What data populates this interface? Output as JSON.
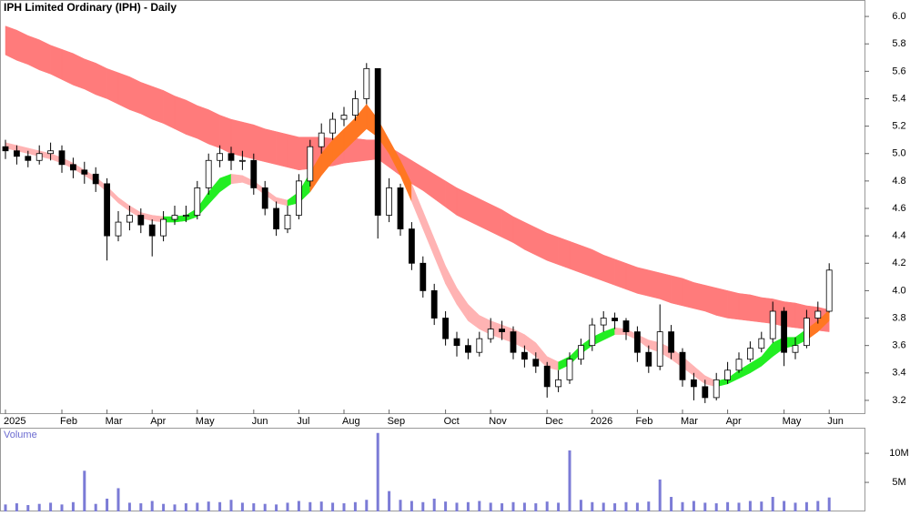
{
  "chart_data": {
    "type": "candlestick",
    "title": "IPH Limited Ordinary (IPH) - Daily",
    "categories": [
      "2025",
      null,
      null,
      null,
      null,
      "Feb",
      null,
      null,
      null,
      "Mar",
      null,
      null,
      null,
      "Apr",
      null,
      null,
      null,
      "May",
      null,
      null,
      null,
      null,
      "Jun",
      null,
      null,
      null,
      "Jul",
      null,
      null,
      null,
      "Aug",
      null,
      null,
      null,
      "Sep",
      null,
      null,
      null,
      null,
      "Oct",
      null,
      null,
      null,
      "Nov",
      null,
      null,
      null,
      null,
      "Dec",
      null,
      null,
      null,
      "2026",
      null,
      null,
      null,
      "Feb",
      null,
      null,
      null,
      "Mar",
      null,
      null,
      null,
      "Apr",
      null,
      null,
      null,
      null,
      "May",
      null,
      null,
      null,
      "Jun"
    ],
    "open": [
      5.05,
      5.02,
      4.98,
      4.95,
      5.0,
      5.02,
      4.92,
      4.88,
      4.85,
      4.78,
      4.4,
      4.5,
      4.55,
      4.48,
      4.4,
      4.52,
      4.55,
      4.55,
      4.75,
      4.95,
      5.0,
      4.95,
      4.95,
      4.75,
      4.6,
      4.45,
      4.55,
      4.8,
      5.05,
      5.15,
      5.25,
      5.28,
      5.4,
      5.62,
      4.55,
      4.75,
      4.45,
      4.2,
      4.0,
      3.8,
      3.65,
      3.6,
      3.55,
      3.65,
      3.72,
      3.7,
      3.55,
      3.5,
      3.45,
      3.3,
      3.35,
      3.5,
      3.6,
      3.75,
      3.8,
      3.78,
      3.7,
      3.55,
      3.45,
      3.7,
      3.55,
      3.35,
      3.3,
      3.22,
      3.35,
      3.42,
      3.5,
      3.58,
      3.65,
      3.85,
      3.55,
      3.6,
      3.8,
      3.85
    ],
    "high": [
      5.1,
      5.06,
      5.02,
      5.06,
      5.08,
      5.06,
      4.97,
      4.94,
      4.9,
      4.82,
      4.58,
      4.62,
      4.6,
      4.52,
      4.58,
      4.62,
      4.62,
      4.8,
      5.0,
      5.06,
      5.05,
      5.02,
      5.0,
      4.8,
      4.65,
      4.62,
      4.85,
      5.1,
      5.22,
      5.3,
      5.34,
      5.46,
      5.66,
      5.62,
      4.82,
      4.78,
      4.5,
      4.25,
      4.05,
      3.85,
      3.7,
      3.65,
      3.7,
      3.8,
      3.78,
      3.74,
      3.6,
      3.55,
      3.48,
      3.42,
      3.55,
      3.65,
      3.8,
      3.85,
      3.84,
      3.8,
      3.74,
      3.6,
      3.9,
      3.75,
      3.58,
      3.4,
      3.35,
      3.4,
      3.48,
      3.55,
      3.63,
      3.7,
      3.92,
      3.88,
      3.66,
      3.86,
      3.92,
      4.2
    ],
    "low": [
      4.96,
      4.92,
      4.9,
      4.92,
      4.95,
      4.86,
      4.82,
      4.78,
      4.72,
      4.22,
      4.36,
      4.44,
      4.42,
      4.25,
      4.36,
      4.48,
      4.5,
      4.52,
      4.7,
      4.9,
      4.88,
      4.88,
      4.7,
      4.55,
      4.4,
      4.42,
      4.52,
      4.76,
      5.0,
      5.1,
      5.2,
      5.24,
      5.36,
      4.38,
      4.5,
      4.4,
      4.15,
      3.95,
      3.75,
      3.6,
      3.52,
      3.5,
      3.52,
      3.62,
      3.64,
      3.5,
      3.44,
      3.4,
      3.22,
      3.26,
      3.32,
      3.46,
      3.56,
      3.7,
      3.72,
      3.64,
      3.48,
      3.4,
      3.42,
      3.5,
      3.3,
      3.2,
      3.18,
      3.2,
      3.32,
      3.4,
      3.48,
      3.55,
      3.62,
      3.45,
      3.5,
      3.58,
      3.76,
      3.84
    ],
    "close": [
      5.02,
      4.98,
      4.95,
      5.0,
      5.02,
      4.92,
      4.88,
      4.85,
      4.78,
      4.4,
      4.5,
      4.55,
      4.48,
      4.4,
      4.52,
      4.55,
      4.55,
      4.75,
      4.95,
      5.0,
      4.95,
      4.95,
      4.75,
      4.6,
      4.45,
      4.55,
      4.8,
      5.05,
      5.15,
      5.25,
      5.28,
      5.4,
      5.62,
      4.55,
      4.75,
      4.45,
      4.2,
      4.0,
      3.8,
      3.65,
      3.6,
      3.55,
      3.65,
      3.72,
      3.7,
      3.55,
      3.5,
      3.45,
      3.3,
      3.35,
      3.5,
      3.6,
      3.75,
      3.8,
      3.78,
      3.7,
      3.55,
      3.45,
      3.7,
      3.55,
      3.35,
      3.3,
      3.22,
      3.35,
      3.42,
      3.5,
      3.58,
      3.65,
      3.85,
      3.55,
      3.6,
      3.8,
      3.85,
      4.15
    ],
    "up_color": "#ffffff",
    "down_color": "#000000",
    "ylim": [
      3.1,
      6.12
    ],
    "yticks": [
      3.2,
      3.4,
      3.6,
      3.8,
      {
        "value": 4,
        "label": "4.0"
      },
      4.2,
      4.4,
      4.6,
      4.8,
      {
        "value": 5,
        "label": "5.0"
      },
      5.2,
      5.4,
      5.6,
      5.8,
      {
        "value": 6,
        "label": "6.0"
      }
    ],
    "long_band": {
      "color": "#ff7b7b",
      "upper": [
        5.93,
        5.9,
        5.86,
        5.83,
        5.79,
        5.76,
        5.73,
        5.69,
        5.66,
        5.62,
        5.59,
        5.56,
        5.52,
        5.49,
        5.46,
        5.42,
        5.39,
        5.35,
        5.32,
        5.28,
        5.25,
        5.23,
        5.21,
        5.18,
        5.16,
        5.14,
        5.12,
        5.12,
        5.12,
        5.11,
        5.11,
        5.11,
        5.1,
        5.1,
        5.05,
        5.0,
        4.95,
        4.9,
        4.85,
        4.8,
        4.75,
        4.71,
        4.67,
        4.63,
        4.59,
        4.54,
        4.5,
        4.46,
        4.42,
        4.39,
        4.36,
        4.33,
        4.3,
        4.26,
        4.23,
        4.2,
        4.17,
        4.15,
        4.13,
        4.11,
        4.09,
        4.06,
        4.04,
        4.02,
        4.0,
        3.98,
        3.97,
        3.95,
        3.94,
        3.92,
        3.91,
        3.89,
        3.88,
        3.86
      ],
      "lower": [
        5.72,
        5.68,
        5.65,
        5.61,
        5.58,
        5.54,
        5.5,
        5.47,
        5.43,
        5.4,
        5.36,
        5.32,
        5.29,
        5.25,
        5.22,
        5.18,
        5.14,
        5.11,
        5.07,
        5.04,
        5.0,
        4.98,
        4.96,
        4.94,
        4.92,
        4.9,
        4.88,
        4.89,
        4.9,
        4.91,
        4.93,
        4.94,
        4.95,
        4.96,
        4.9,
        4.84,
        4.78,
        4.73,
        4.67,
        4.61,
        4.55,
        4.51,
        4.47,
        4.43,
        4.39,
        4.35,
        4.3,
        4.26,
        4.22,
        4.19,
        4.16,
        4.13,
        4.1,
        4.07,
        4.04,
        4.01,
        3.98,
        3.96,
        3.94,
        3.91,
        3.89,
        3.87,
        3.85,
        3.82,
        3.8,
        3.79,
        3.78,
        3.77,
        3.76,
        3.74,
        3.73,
        3.72,
        3.71,
        3.7
      ]
    },
    "short_band": {
      "rising_color": "#22ee22",
      "falling_color": "#ffb3b3",
      "overlap_color": "#ff7722",
      "upper": [
        5.08,
        5.06,
        5.04,
        5.02,
        5.0,
        4.97,
        4.93,
        4.88,
        4.83,
        4.76,
        4.68,
        4.62,
        4.57,
        4.55,
        4.54,
        4.54,
        4.55,
        4.6,
        4.72,
        4.82,
        4.85,
        4.84,
        4.8,
        4.74,
        4.68,
        4.66,
        4.72,
        4.86,
        5.0,
        5.1,
        5.18,
        5.26,
        5.36,
        5.25,
        5.1,
        4.95,
        4.78,
        4.58,
        4.38,
        4.18,
        4.02,
        3.9,
        3.82,
        3.78,
        3.75,
        3.72,
        3.68,
        3.62,
        3.52,
        3.48,
        3.52,
        3.6,
        3.66,
        3.7,
        3.73,
        3.72,
        3.68,
        3.64,
        3.62,
        3.58,
        3.52,
        3.45,
        3.38,
        3.34,
        3.36,
        3.42,
        3.47,
        3.52,
        3.62,
        3.66,
        3.66,
        3.72,
        3.78,
        3.86
      ],
      "lower": [
        5.04,
        5.02,
        5.0,
        4.98,
        4.96,
        4.93,
        4.89,
        4.84,
        4.79,
        4.72,
        4.64,
        4.58,
        4.53,
        4.51,
        4.5,
        4.5,
        4.51,
        4.54,
        4.63,
        4.72,
        4.78,
        4.79,
        4.76,
        4.7,
        4.64,
        4.62,
        4.64,
        4.72,
        4.84,
        4.94,
        5.02,
        5.1,
        5.18,
        5.12,
        5.0,
        4.84,
        4.65,
        4.45,
        4.25,
        4.05,
        3.9,
        3.78,
        3.72,
        3.68,
        3.65,
        3.62,
        3.58,
        3.52,
        3.44,
        3.42,
        3.46,
        3.54,
        3.6,
        3.64,
        3.68,
        3.68,
        3.64,
        3.58,
        3.55,
        3.5,
        3.44,
        3.38,
        3.32,
        3.3,
        3.32,
        3.36,
        3.4,
        3.45,
        3.52,
        3.58,
        3.6,
        3.64,
        3.7,
        3.78
      ]
    },
    "volume": {
      "label": "Volume",
      "color": "#7b7bd6",
      "ylim": [
        0,
        14400000
      ],
      "yticks": [
        {
          "value": 5000000,
          "label": "5M"
        },
        {
          "value": 10000000,
          "label": "10M"
        }
      ],
      "values": [
        1200000,
        1400000,
        1100000,
        1300000,
        1500000,
        1200000,
        1600000,
        7000000,
        1300000,
        2200000,
        4000000,
        1500000,
        1400000,
        1800000,
        1300000,
        1200000,
        1400000,
        1500000,
        1700000,
        1600000,
        2000000,
        1500000,
        1400000,
        1300000,
        1200000,
        1500000,
        1800000,
        1600000,
        1700000,
        1500000,
        1400000,
        1600000,
        2000000,
        13500000,
        3500000,
        2000000,
        1800000,
        1600000,
        2200000,
        1700000,
        1500000,
        1600000,
        1800000,
        1500000,
        1400000,
        1600000,
        1500000,
        1400000,
        1700000,
        1500000,
        10500000,
        2000000,
        1600000,
        1500000,
        1400000,
        1600000,
        1500000,
        1700000,
        5500000,
        2500000,
        1600000,
        1800000,
        1500000,
        1400000,
        1600000,
        1500000,
        1800000,
        1700000,
        2500000,
        1800000,
        1500000,
        1600000,
        1800000,
        2400000
      ]
    }
  }
}
